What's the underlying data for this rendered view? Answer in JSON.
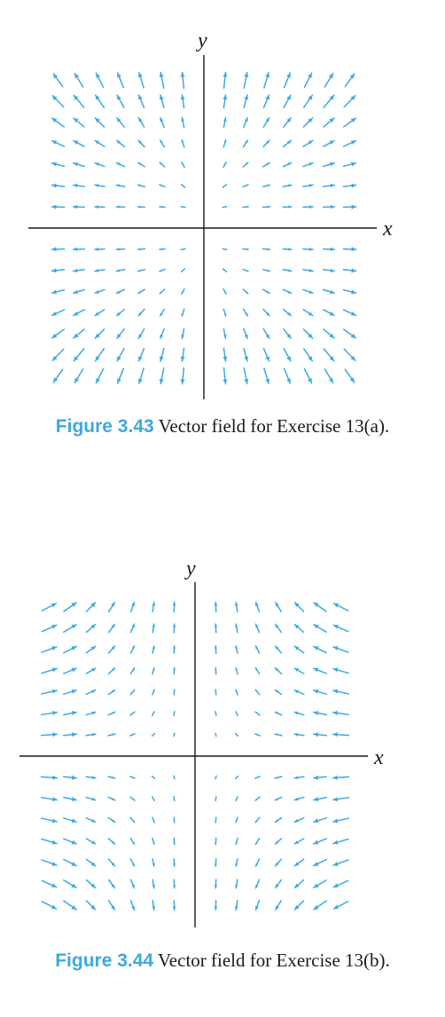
{
  "figures": [
    {
      "id": "fig1",
      "label": "Figure 3.43",
      "caption": "Vector field for Exercise 13(a).",
      "x_axis_label": "x",
      "y_axis_label": "y"
    },
    {
      "id": "fig2",
      "label": "Figure 3.44",
      "caption": "Vector field for Exercise 13(b).",
      "x_axis_label": "x",
      "y_axis_label": "y"
    }
  ],
  "colors": {
    "vector": "#3fa9dd",
    "axis": "#1a1a1a",
    "label_accent": "#3fa9dd"
  }
}
